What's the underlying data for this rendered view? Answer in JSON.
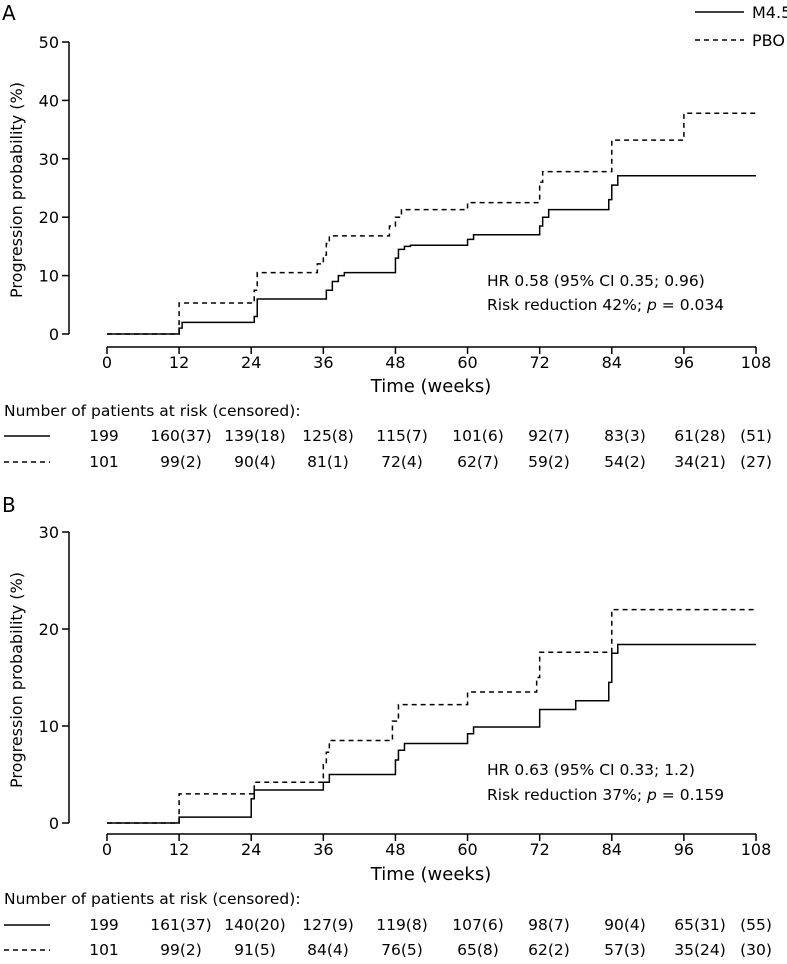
{
  "legend": {
    "items": [
      {
        "label": "M4.5",
        "style": "solid"
      },
      {
        "label": "PBO",
        "style": "dashed"
      }
    ]
  },
  "chart_data": [
    {
      "panel": "A",
      "type": "line",
      "xlabel": "Time (weeks)",
      "ylabel": "Progression probability (%)",
      "xlim": [
        0,
        108
      ],
      "ylim": [
        0,
        50
      ],
      "xticks": [
        0,
        12,
        24,
        36,
        48,
        60,
        72,
        84,
        96,
        108
      ],
      "yticks": [
        0,
        10,
        20,
        30,
        40,
        50
      ],
      "annotation": {
        "hr": "HR 0.58 (95% CI 0.35; 0.96)",
        "risk_prefix": "Risk reduction 42%; ",
        "p_symbol": "p",
        "p_value": " = 0.034"
      },
      "series": [
        {
          "name": "M4.5",
          "style": "solid",
          "steps": [
            [
              0,
              0
            ],
            [
              11.5,
              0
            ],
            [
              12,
              1
            ],
            [
              12.5,
              2
            ],
            [
              24,
              2
            ],
            [
              24.5,
              3
            ],
            [
              25,
              6
            ],
            [
              36,
              6
            ],
            [
              36.5,
              7.5
            ],
            [
              37.5,
              9
            ],
            [
              38.5,
              10
            ],
            [
              39.5,
              10.5
            ],
            [
              47.5,
              10.5
            ],
            [
              48,
              13
            ],
            [
              48.5,
              14.5
            ],
            [
              49.5,
              15
            ],
            [
              50.5,
              15.2
            ],
            [
              59.5,
              15.2
            ],
            [
              60,
              16.2
            ],
            [
              61,
              17
            ],
            [
              71.5,
              17
            ],
            [
              72,
              18.5
            ],
            [
              72.5,
              20
            ],
            [
              73.5,
              21.3
            ],
            [
              83,
              21.3
            ],
            [
              83.5,
              23
            ],
            [
              84,
              25.5
            ],
            [
              85,
              27.1
            ],
            [
              108,
              27.1
            ]
          ]
        },
        {
          "name": "PBO",
          "style": "dashed",
          "steps": [
            [
              0,
              0
            ],
            [
              11.5,
              0
            ],
            [
              12,
              5.3
            ],
            [
              24,
              5.3
            ],
            [
              24.5,
              7.5
            ],
            [
              25,
              10.5
            ],
            [
              34.5,
              10.5
            ],
            [
              35,
              12
            ],
            [
              36,
              13.5
            ],
            [
              36.5,
              15.5
            ],
            [
              37,
              16.8
            ],
            [
              46.5,
              16.8
            ],
            [
              47,
              18.5
            ],
            [
              48,
              20
            ],
            [
              49,
              21.3
            ],
            [
              59.5,
              21.3
            ],
            [
              60,
              22.5
            ],
            [
              71.5,
              22.5
            ],
            [
              72,
              26
            ],
            [
              72.5,
              27.8
            ],
            [
              83.5,
              27.8
            ],
            [
              84,
              33.2
            ],
            [
              95.5,
              33.2
            ],
            [
              96,
              37.8
            ],
            [
              108,
              37.8
            ]
          ]
        }
      ],
      "at_risk": {
        "title": "Number of patients at risk (censored):",
        "rows": [
          {
            "style": "solid",
            "values": [
              "199",
              "160(37)",
              "139(18)",
              "125(8)",
              "115(7)",
              "101(6)",
              "92(7)",
              "83(3)",
              "61(28)",
              "(51)"
            ]
          },
          {
            "style": "dashed",
            "values": [
              "101",
              "99(2)",
              "90(4)",
              "81(1)",
              "72(4)",
              "62(7)",
              "59(2)",
              "54(2)",
              "34(21)",
              "(27)"
            ]
          }
        ]
      }
    },
    {
      "panel": "B",
      "type": "line",
      "xlabel": "Time (weeks)",
      "ylabel": "Progression probability (%)",
      "xlim": [
        0,
        108
      ],
      "ylim": [
        0,
        30
      ],
      "xticks": [
        0,
        12,
        24,
        36,
        48,
        60,
        72,
        84,
        96,
        108
      ],
      "yticks": [
        0,
        10,
        20,
        30
      ],
      "annotation": {
        "hr": "HR 0.63 (95% CI 0.33; 1.2)",
        "risk_prefix": "Risk reduction 37%; ",
        "p_symbol": "p",
        "p_value": " = 0.159"
      },
      "series": [
        {
          "name": "M4.5",
          "style": "solid",
          "steps": [
            [
              0,
              0
            ],
            [
              11.5,
              0
            ],
            [
              12,
              0.6
            ],
            [
              23.5,
              0.6
            ],
            [
              24,
              2.5
            ],
            [
              24.5,
              3.4
            ],
            [
              35.5,
              3.4
            ],
            [
              36,
              4.2
            ],
            [
              37,
              5
            ],
            [
              47.5,
              5
            ],
            [
              48,
              6.5
            ],
            [
              48.5,
              7.5
            ],
            [
              49.5,
              8.2
            ],
            [
              59.5,
              8.2
            ],
            [
              60,
              9.2
            ],
            [
              61,
              9.9
            ],
            [
              71.5,
              9.9
            ],
            [
              72,
              11.7
            ],
            [
              77,
              11.7
            ],
            [
              78,
              12.6
            ],
            [
              83,
              12.6
            ],
            [
              83.5,
              14.5
            ],
            [
              84,
              17.5
            ],
            [
              85,
              18.4
            ],
            [
              108,
              18.4
            ]
          ]
        },
        {
          "name": "PBO",
          "style": "dashed",
          "steps": [
            [
              0,
              0
            ],
            [
              11.5,
              0
            ],
            [
              12,
              3
            ],
            [
              24,
              3
            ],
            [
              24.5,
              4.2
            ],
            [
              35.5,
              4.2
            ],
            [
              36,
              6
            ],
            [
              36.5,
              7.3
            ],
            [
              37,
              8.5
            ],
            [
              47,
              8.5
            ],
            [
              47.5,
              10.5
            ],
            [
              48.5,
              12.2
            ],
            [
              59.5,
              12.2
            ],
            [
              60,
              13.5
            ],
            [
              71,
              13.5
            ],
            [
              71.5,
              15
            ],
            [
              72,
              17.6
            ],
            [
              83.5,
              17.6
            ],
            [
              84,
              22
            ],
            [
              108,
              22
            ]
          ]
        }
      ],
      "at_risk": {
        "title": "Number of patients at risk (censored):",
        "rows": [
          {
            "style": "solid",
            "values": [
              "199",
              "161(37)",
              "140(20)",
              "127(9)",
              "119(8)",
              "107(6)",
              "98(7)",
              "90(4)",
              "65(31)",
              "(55)"
            ]
          },
          {
            "style": "dashed",
            "values": [
              "101",
              "99(2)",
              "91(5)",
              "84(4)",
              "76(5)",
              "65(8)",
              "62(2)",
              "57(3)",
              "35(24)",
              "(30)"
            ]
          }
        ]
      }
    }
  ]
}
